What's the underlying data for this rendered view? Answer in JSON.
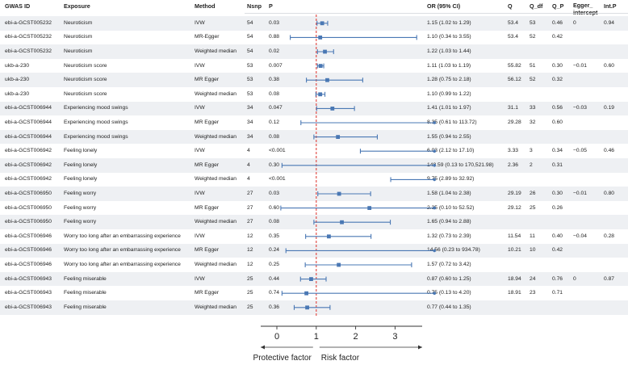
{
  "columns": {
    "gwas_id": "GWAS ID",
    "exposure": "Exposure",
    "method": "Method",
    "nsnp": "Nsnp",
    "p": "P",
    "or": "OR (95% CI)",
    "q": "Q",
    "q_df": "Q_df",
    "q_p": "Q_P",
    "egger_intercept": "Egger_\nintercept",
    "int_p": "Int.P"
  },
  "rows": [
    {
      "gwas_id": "ebi-a-GCST005232",
      "exposure": "Neuroticism",
      "method": "IVW",
      "nsnp": "54",
      "p": "0.03",
      "or_text": "1.15 (1.02 to 1.29)",
      "q": "53.4",
      "q_df": "53",
      "q_p": "0.46",
      "egger_intercept": "0",
      "int_p": "0.94"
    },
    {
      "gwas_id": "ebi-a-GCST005232",
      "exposure": "Neuroticism",
      "method": "MR-Egger",
      "nsnp": "54",
      "p": "0.88",
      "or_text": "1.10 (0.34 to 3.55)",
      "q": "53.4",
      "q_df": "52",
      "q_p": "0.42",
      "egger_intercept": "",
      "int_p": ""
    },
    {
      "gwas_id": "ebi-a-GCST005232",
      "exposure": "Neuroticism",
      "method": "Weighted median",
      "nsnp": "54",
      "p": "0.02",
      "or_text": "1.22 (1.03 to 1.44)",
      "q": "",
      "q_df": "",
      "q_p": "",
      "egger_intercept": "",
      "int_p": ""
    },
    {
      "gwas_id": "ukb-a-230",
      "exposure": "Neuroticism score",
      "method": "IVW",
      "nsnp": "53",
      "p": "0.007",
      "or_text": "1.11 (1.03 to 1.19)",
      "q": "55.82",
      "q_df": "51",
      "q_p": "0.30",
      "egger_intercept": "−0.01",
      "int_p": "0.60"
    },
    {
      "gwas_id": "ukb-a-230",
      "exposure": "Neuroticism score",
      "method": "MR Egger",
      "nsnp": "53",
      "p": "0.38",
      "or_text": "1.28 (0.75 to 2.18)",
      "q": "56.12",
      "q_df": "52",
      "q_p": "0.32",
      "egger_intercept": "",
      "int_p": ""
    },
    {
      "gwas_id": "ukb-a-230",
      "exposure": "Neuroticism score",
      "method": "Weighted median",
      "nsnp": "53",
      "p": "0.08",
      "or_text": "1.10 (0.99 to 1.22)",
      "q": "",
      "q_df": "",
      "q_p": "",
      "egger_intercept": "",
      "int_p": ""
    },
    {
      "gwas_id": "ebi-a-GCST006944",
      "exposure": "Experiencing mood swings",
      "method": "IVW",
      "nsnp": "34",
      "p": "0.047",
      "or_text": "1.41 (1.01 to 1.97)",
      "q": "31.1",
      "q_df": "33",
      "q_p": "0.56",
      "egger_intercept": "−0.03",
      "int_p": "0.19"
    },
    {
      "gwas_id": "ebi-a-GCST006944",
      "exposure": "Experiencing mood swings",
      "method": "MR Egger",
      "nsnp": "34",
      "p": "0.12",
      "or_text": "8.35 (0.61 to 113.72)",
      "q": "29.28",
      "q_df": "32",
      "q_p": "0.60",
      "egger_intercept": "",
      "int_p": ""
    },
    {
      "gwas_id": "ebi-a-GCST006944",
      "exposure": "Experiencing mood swings",
      "method": "Weighted median",
      "nsnp": "34",
      "p": "0.08",
      "or_text": "1.55 (0.94 to 2.55)",
      "q": "",
      "q_df": "",
      "q_p": "",
      "egger_intercept": "",
      "int_p": ""
    },
    {
      "gwas_id": "ebi-a-GCST006942",
      "exposure": "Feeling lonely",
      "method": "IVW",
      "nsnp": "4",
      "p": "<0.001",
      "or_text": "6.03 (2.12 to 17.10)",
      "q": "3.33",
      "q_df": "3",
      "q_p": "0.34",
      "egger_intercept": "−0.05",
      "int_p": "0.46"
    },
    {
      "gwas_id": "ebi-a-GCST006942",
      "exposure": "Feeling lonely",
      "method": "MR Egger",
      "nsnp": "4",
      "p": "0.30",
      "or_text": "148.59 (0.13 to 170,521.98)",
      "q": "2.36",
      "q_df": "2",
      "q_p": "0.31",
      "egger_intercept": "",
      "int_p": ""
    },
    {
      "gwas_id": "ebi-a-GCST006942",
      "exposure": "Feeling lonely",
      "method": "Weighted median",
      "nsnp": "4",
      "p": "<0.001",
      "or_text": "9.75 (2.89 to 32.92)",
      "q": "",
      "q_df": "",
      "q_p": "",
      "egger_intercept": "",
      "int_p": ""
    },
    {
      "gwas_id": "ebi-a-GCST006950",
      "exposure": "Feeling worry",
      "method": "IVW",
      "nsnp": "27",
      "p": "0.03",
      "or_text": "1.58 (1.04 to 2.38)",
      "q": "29.19",
      "q_df": "26",
      "q_p": "0.30",
      "egger_intercept": "−0.01",
      "int_p": "0.80"
    },
    {
      "gwas_id": "ebi-a-GCST006950",
      "exposure": "Feeling worry",
      "method": "MR Egger",
      "nsnp": "27",
      "p": "0.60",
      "or_text": "2.35 (0.10 to 52.52)",
      "q": "29.12",
      "q_df": "25",
      "q_p": "0.26",
      "egger_intercept": "",
      "int_p": ""
    },
    {
      "gwas_id": "ebi-a-GCST006950",
      "exposure": "Feeling worry",
      "method": "Weighted median",
      "nsnp": "27",
      "p": "0.08",
      "or_text": "1.65 (0.94 to 2.88)",
      "q": "",
      "q_df": "",
      "q_p": "",
      "egger_intercept": "",
      "int_p": ""
    },
    {
      "gwas_id": "ebi-a-GCST006946",
      "exposure": "Worry too long after an embarrassing experience",
      "method": "IVW",
      "nsnp": "12",
      "p": "0.35",
      "or_text": "1.32 (0.73 to 2.39)",
      "q": "11.54",
      "q_df": "11",
      "q_p": "0.40",
      "egger_intercept": "−0.04",
      "int_p": "0.28"
    },
    {
      "gwas_id": "ebi-a-GCST006946",
      "exposure": "Worry too long after an embarrassing experience",
      "method": "MR Egger",
      "nsnp": "12",
      "p": "0.24",
      "or_text": "14.56 (0.23 to 934.78)",
      "q": "10.21",
      "q_df": "10",
      "q_p": "0.42",
      "egger_intercept": "",
      "int_p": ""
    },
    {
      "gwas_id": "ebi-a-GCST006946",
      "exposure": "Worry too long after an embarrassing experience",
      "method": "Weighted median",
      "nsnp": "12",
      "p": "0.25",
      "or_text": "1.57 (0.72 to 3.42)",
      "q": "",
      "q_df": "",
      "q_p": "",
      "egger_intercept": "",
      "int_p": ""
    },
    {
      "gwas_id": "ebi-a-GCST006943",
      "exposure": "Feeling miserable",
      "method": "IVW",
      "nsnp": "25",
      "p": "0.44",
      "or_text": "0.87 (0.60 to 1.25)",
      "q": "18.94",
      "q_df": "24",
      "q_p": "0.76",
      "egger_intercept": "0",
      "int_p": "0.87"
    },
    {
      "gwas_id": "ebi-a-GCST006943",
      "exposure": "Feeling miserable",
      "method": "MR Egger",
      "nsnp": "25",
      "p": "0.74",
      "or_text": "0.75 (0.13 to 4.20)",
      "q": "18.91",
      "q_df": "23",
      "q_p": "0.71",
      "egger_intercept": "",
      "int_p": ""
    },
    {
      "gwas_id": "ebi-a-GCST006943",
      "exposure": "Feeling miserable",
      "method": "Weighted median",
      "nsnp": "25",
      "p": "0.36",
      "or_text": "0.77 (0.44 to 1.35)",
      "q": "",
      "q_df": "",
      "q_p": "",
      "egger_intercept": "",
      "int_p": ""
    }
  ],
  "chart_data": {
    "type": "forest",
    "xlim": [
      0,
      4
    ],
    "x_ticks": [
      0,
      1,
      2,
      3
    ],
    "reference_line": 1,
    "xlabel_left": "Protective factor",
    "xlabel_right": "Risk factor",
    "grid": false,
    "clip_at": 4,
    "estimates": [
      1.15,
      1.1,
      1.22,
      1.11,
      1.28,
      1.1,
      1.41,
      8.35,
      1.55,
      6.03,
      148.59,
      9.75,
      1.58,
      2.35,
      1.65,
      1.32,
      14.56,
      1.57,
      0.87,
      0.75,
      0.77
    ],
    "lower": [
      1.02,
      0.34,
      1.03,
      1.03,
      0.75,
      0.99,
      1.01,
      0.61,
      0.94,
      2.12,
      0.13,
      2.89,
      1.04,
      0.1,
      0.94,
      0.73,
      0.23,
      0.72,
      0.6,
      0.13,
      0.44
    ],
    "upper": [
      1.29,
      3.55,
      1.44,
      1.19,
      2.18,
      1.22,
      1.97,
      113.72,
      2.55,
      17.1,
      170521.98,
      32.92,
      2.38,
      52.52,
      2.88,
      2.39,
      934.78,
      3.42,
      1.25,
      4.2,
      1.35
    ],
    "colors": {
      "point": "#4a78b4",
      "ci": "#4a78b4",
      "ref_line": "#e0403a",
      "axis": "#333333",
      "stripe": "#eef0f3"
    }
  }
}
